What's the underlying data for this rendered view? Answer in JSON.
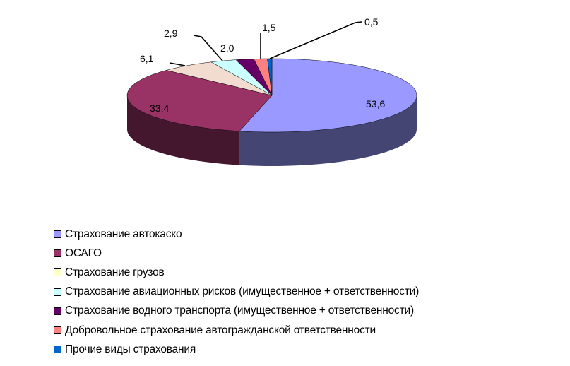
{
  "chart_data": {
    "type": "pie",
    "style": "3d",
    "legend_position": "bottom-left",
    "categories": [
      "Страхование автокаско",
      "ОСАГО",
      "Страхование грузов",
      "Страхование авиационных рисков (имущественное + ответственности)",
      "Страхование водного транспорта (имущественное + ответственности)",
      "Добровольное страхование автогражданской ответственности",
      "Прочие виды страхования"
    ],
    "values": [
      53.6,
      33.4,
      6.1,
      2.9,
      2.0,
      1.5,
      0.5
    ],
    "data_labels": [
      "53,6",
      "33,4",
      "6,1",
      "2,9",
      "2,0",
      "1,5",
      "0,5"
    ],
    "colors": [
      "#9999FF",
      "#993366",
      "#F2DCD0",
      "#CCFFFF",
      "#660066",
      "#FF8080",
      "#0066CC"
    ],
    "legend_colors": [
      "#9999FF",
      "#993366",
      "#FFFFCC",
      "#CCFFFF",
      "#660066",
      "#FF8080",
      "#0066CC"
    ]
  }
}
